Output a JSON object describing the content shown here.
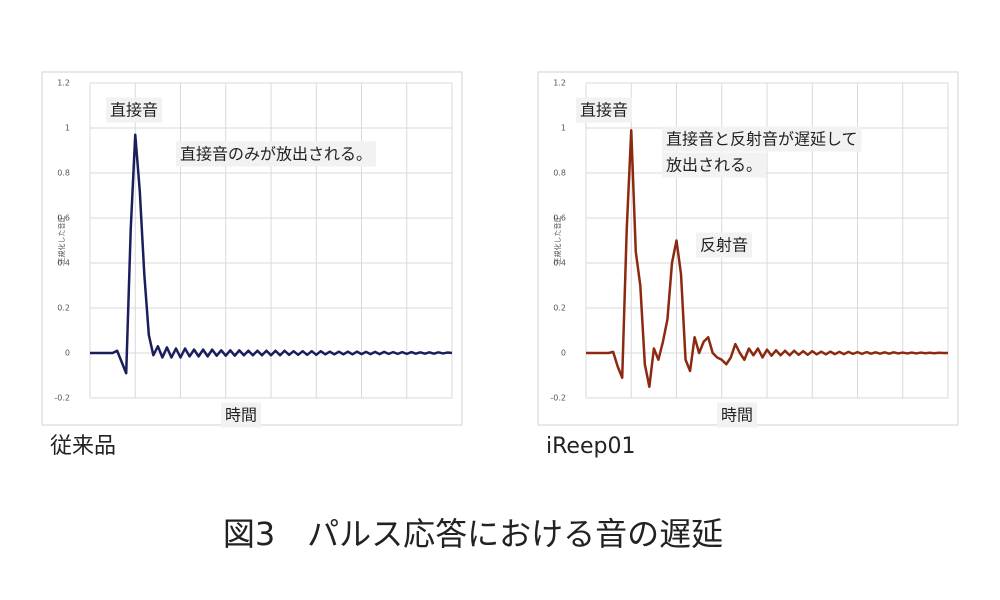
{
  "figure_title": "図3　パルス応答における音の遅延",
  "chart_data": [
    {
      "type": "line",
      "caption": "従来品",
      "xlabel": "時間",
      "ylabel": "正規化した音圧",
      "annotations": [
        "直接音",
        "直接音のみが放出される。"
      ],
      "x": [
        0,
        1,
        2,
        3,
        4,
        5,
        6,
        7,
        8,
        9,
        10,
        11,
        12,
        13,
        14,
        15,
        16,
        17,
        18,
        19,
        20,
        21,
        22,
        23,
        24,
        25,
        26,
        27,
        28,
        29,
        30,
        31,
        32,
        33,
        34,
        35,
        36,
        37,
        38,
        39,
        40,
        41,
        42,
        43,
        44,
        45,
        46,
        47,
        48,
        49,
        50,
        51,
        52,
        53,
        54,
        55,
        56,
        57,
        58,
        59,
        60,
        61,
        62,
        63,
        64,
        65,
        66,
        67,
        68,
        69,
        70,
        71,
        72,
        73,
        74,
        75,
        76,
        77,
        78,
        79,
        80
      ],
      "xlim": [
        0,
        80
      ],
      "series": [
        {
          "color": "#1a1f5c",
          "values": [
            0,
            0,
            0,
            0,
            0,
            0,
            0.01,
            -0.04,
            -0.09,
            0.55,
            0.97,
            0.72,
            0.35,
            0.08,
            -0.01,
            0.03,
            -0.02,
            0.025,
            -0.02,
            0.02,
            -0.02,
            0.02,
            -0.015,
            0.015,
            -0.015,
            0.015,
            -0.015,
            0.015,
            -0.012,
            0.012,
            -0.012,
            0.012,
            -0.012,
            0.012,
            -0.01,
            0.01,
            -0.01,
            0.01,
            -0.01,
            0.01,
            -0.01,
            0.01,
            -0.01,
            0.01,
            -0.008,
            0.008,
            -0.008,
            0.008,
            -0.008,
            0.008,
            -0.008,
            0.008,
            -0.006,
            0.006,
            -0.006,
            0.006,
            -0.006,
            0.006,
            -0.006,
            0.006,
            -0.005,
            0.005,
            -0.005,
            0.005,
            -0.005,
            0.005,
            -0.004,
            0.004,
            -0.004,
            0.004,
            -0.004,
            0.004,
            -0.003,
            0.003,
            -0.003,
            0.003,
            -0.003,
            0.003,
            -0.002,
            0.002,
            0
          ]
        }
      ],
      "ylim": [
        -0.2,
        1.2
      ],
      "yticks": [
        -0.2,
        0,
        0.2,
        0.4,
        0.6,
        0.8,
        1,
        1.2
      ],
      "grid": true
    },
    {
      "type": "line",
      "caption": "iReep01",
      "xlabel": "時間",
      "ylabel": "正規化した音圧",
      "annotations": [
        "直接音",
        "直接音と反射音が遅延して",
        "放出される。",
        "反射音"
      ],
      "x": [
        0,
        1,
        2,
        3,
        4,
        5,
        6,
        7,
        8,
        9,
        10,
        11,
        12,
        13,
        14,
        15,
        16,
        17,
        18,
        19,
        20,
        21,
        22,
        23,
        24,
        25,
        26,
        27,
        28,
        29,
        30,
        31,
        32,
        33,
        34,
        35,
        36,
        37,
        38,
        39,
        40,
        41,
        42,
        43,
        44,
        45,
        46,
        47,
        48,
        49,
        50,
        51,
        52,
        53,
        54,
        55,
        56,
        57,
        58,
        59,
        60,
        61,
        62,
        63,
        64,
        65,
        66,
        67,
        68,
        69,
        70,
        71,
        72,
        73,
        74,
        75,
        76,
        77,
        78,
        79,
        80
      ],
      "xlim": [
        0,
        80
      ],
      "series": [
        {
          "color": "#8b2a10",
          "values": [
            0,
            0,
            0,
            0,
            0,
            0,
            0.005,
            -0.06,
            -0.11,
            0.55,
            0.99,
            0.45,
            0.3,
            -0.05,
            -0.15,
            0.02,
            -0.03,
            0.05,
            0.15,
            0.4,
            0.5,
            0.35,
            -0.03,
            -0.08,
            0.07,
            0,
            0.05,
            0.07,
            0,
            -0.02,
            -0.03,
            -0.05,
            -0.02,
            0.04,
            0,
            -0.03,
            0.02,
            -0.01,
            0.02,
            -0.02,
            0.015,
            -0.012,
            0.012,
            -0.01,
            0.01,
            -0.01,
            0.01,
            -0.008,
            0.008,
            -0.008,
            0.008,
            -0.006,
            0.006,
            -0.006,
            0.006,
            -0.005,
            0.005,
            -0.005,
            0.005,
            -0.004,
            0.004,
            -0.004,
            0.004,
            -0.003,
            0.003,
            -0.003,
            0.003,
            -0.003,
            0.003,
            -0.002,
            0.002,
            -0.002,
            0.002,
            -0.002,
            0.002,
            -0.001,
            0.001,
            -0.001,
            0.001,
            0,
            0
          ]
        }
      ],
      "ylim": [
        -0.2,
        1.2
      ],
      "yticks": [
        -0.2,
        0,
        0.2,
        0.4,
        0.6,
        0.8,
        1,
        1.2
      ],
      "grid": true
    }
  ]
}
